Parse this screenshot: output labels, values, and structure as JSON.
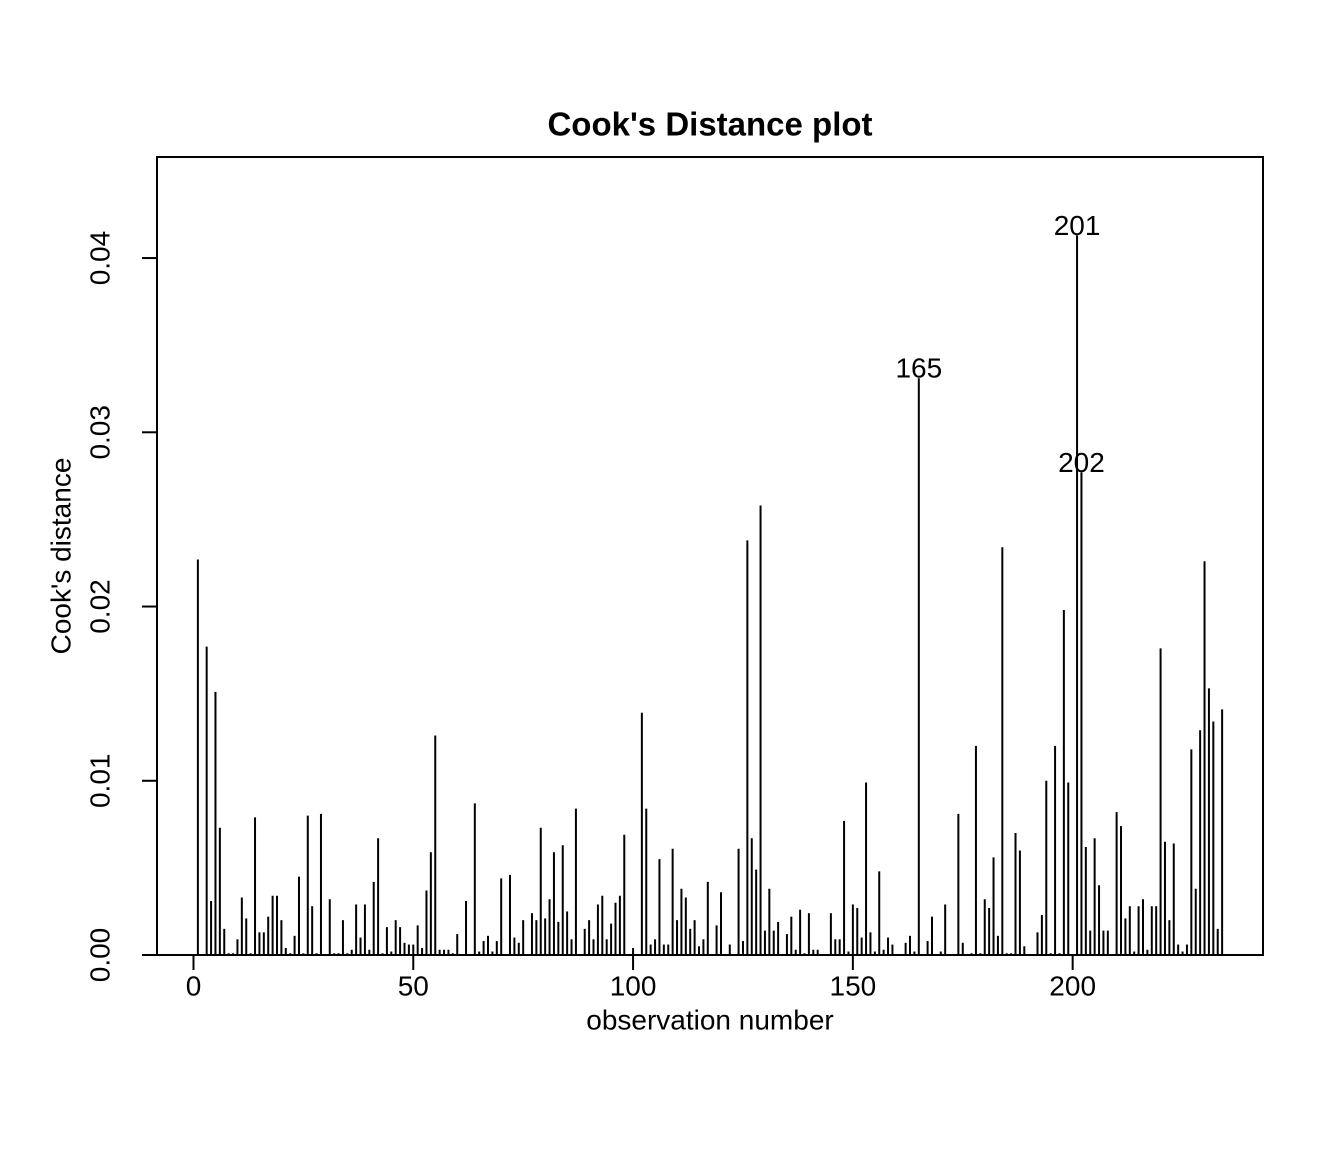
{
  "chart_data": {
    "type": "bar",
    "title": "Cook's Distance plot",
    "x_label": "observation number",
    "y_label": "Cook's distance",
    "x": [
      1,
      2,
      3,
      4,
      5,
      6,
      7,
      8,
      9,
      10,
      11,
      12,
      13,
      14,
      15,
      16,
      17,
      18,
      19,
      20,
      21,
      22,
      23,
      24,
      25,
      26,
      27,
      28,
      29,
      30,
      31,
      32,
      33,
      34,
      35,
      36,
      37,
      38,
      39,
      40,
      41,
      42,
      43,
      44,
      45,
      46,
      47,
      48,
      49,
      50,
      51,
      52,
      53,
      54,
      55,
      56,
      57,
      58,
      59,
      60,
      61,
      62,
      63,
      64,
      65,
      66,
      67,
      68,
      69,
      70,
      71,
      72,
      73,
      74,
      75,
      76,
      77,
      78,
      79,
      80,
      81,
      82,
      83,
      84,
      85,
      86,
      87,
      88,
      89,
      90,
      91,
      92,
      93,
      94,
      95,
      96,
      97,
      98,
      99,
      100,
      101,
      102,
      103,
      104,
      105,
      106,
      107,
      108,
      109,
      110,
      111,
      112,
      113,
      114,
      115,
      116,
      117,
      118,
      119,
      120,
      121,
      122,
      123,
      124,
      125,
      126,
      127,
      128,
      129,
      130,
      131,
      132,
      133,
      134,
      135,
      136,
      137,
      138,
      139,
      140,
      141,
      142,
      143,
      144,
      145,
      146,
      147,
      148,
      149,
      150,
      151,
      152,
      153,
      154,
      155,
      156,
      157,
      158,
      159,
      160,
      161,
      162,
      163,
      164,
      165,
      166,
      167,
      168,
      169,
      170,
      171,
      172,
      173,
      174,
      175,
      176,
      177,
      178,
      179,
      180,
      181,
      182,
      183,
      184,
      185,
      186,
      187,
      188,
      189,
      190,
      191,
      192,
      193,
      194,
      195,
      196,
      197,
      198,
      199,
      200,
      201,
      202,
      203,
      204,
      205,
      206,
      207,
      208,
      209,
      210,
      211,
      212,
      213,
      214,
      215,
      216,
      217,
      218,
      219,
      220,
      221,
      222,
      223,
      224,
      225,
      226,
      227,
      228,
      229,
      230,
      231,
      232,
      233,
      234
    ],
    "values": [
      0.0227,
      0,
      0.0177,
      0.0031,
      0.0151,
      0.0073,
      0.0015,
      0.0001,
      0.0001,
      0.0009,
      0.0033,
      0.0021,
      0.0001,
      0.0079,
      0.0013,
      0.0013,
      0.0022,
      0.0034,
      0.0034,
      0.002,
      0.0004,
      0.0001,
      0.0011,
      0.0045,
      0.0001,
      0.008,
      0.0028,
      0.0001,
      0.0081,
      0,
      0.0032,
      0.0001,
      0.0001,
      0.002,
      0.0001,
      0.0003,
      0.0029,
      0.001,
      0.0029,
      0.0003,
      0.0042,
      0.0067,
      0.0001,
      0.0016,
      0.0002,
      0.002,
      0.0016,
      0.0007,
      0.0006,
      0.0006,
      0.0017,
      0.0004,
      0.0037,
      0.0059,
      0.0126,
      0.0003,
      0.0003,
      0.0003,
      0.0001,
      0.0012,
      0,
      0.0031,
      0,
      0.0087,
      0.0002,
      0.0008,
      0.0011,
      0.0002,
      0.0008,
      0.0044,
      0,
      0.0046,
      0.001,
      0.0007,
      0.002,
      0,
      0.0024,
      0.002,
      0.0073,
      0.0021,
      0.0032,
      0.0059,
      0.0019,
      0.0063,
      0.0025,
      0.0009,
      0.0084,
      0,
      0.0015,
      0.002,
      0.0009,
      0.0029,
      0.0034,
      0.0009,
      0.0018,
      0.003,
      0.0034,
      0.0069,
      0,
      0.0004,
      0,
      0.0139,
      0.0084,
      0.0006,
      0.0009,
      0.0055,
      0.0006,
      0.0006,
      0.0061,
      0.002,
      0.0038,
      0.0033,
      0.0015,
      0.002,
      0.0005,
      0.0009,
      0.0042,
      0,
      0.0017,
      0.0036,
      0,
      0.0006,
      0,
      0.0061,
      0.0008,
      0.0238,
      0.0067,
      0.0049,
      0.0258,
      0.0014,
      0.0038,
      0.0014,
      0.0019,
      0,
      0.0012,
      0.0022,
      0.0003,
      0.0026,
      0.0001,
      0.0024,
      0.0003,
      0.0003,
      0,
      0,
      0.0024,
      0.0009,
      0.0009,
      0.0077,
      0.0002,
      0.0029,
      0.0027,
      0.001,
      0.0099,
      0.0013,
      0.0002,
      0.0048,
      0.0003,
      0.001,
      0.0006,
      0,
      0,
      0.0007,
      0.0011,
      0.0002,
      0.0331,
      0,
      0.0008,
      0.0022,
      0,
      0.0002,
      0.0029,
      0,
      0,
      0.0081,
      0.0007,
      0,
      0.0001,
      0.012,
      0.0001,
      0.0032,
      0.0027,
      0.0056,
      0.0011,
      0.0234,
      0.0001,
      0.0001,
      0.007,
      0.006,
      0.0005,
      0,
      0,
      0.0013,
      0.0023,
      0.01,
      0.0001,
      0.012,
      0.0001,
      0.0198,
      0.0099,
      0,
      0.0413,
      0.0277,
      0.0062,
      0.0014,
      0.0067,
      0.004,
      0.0014,
      0.0014,
      0,
      0.0082,
      0.0074,
      0.0021,
      0.0028,
      0.0002,
      0.0028,
      0.0032,
      0.0003,
      0.0028,
      0.0028,
      0.0176,
      0.0065,
      0.002,
      0.0064,
      0.0006,
      0.0002,
      0.0006,
      0.0118,
      0.0038,
      0.0129,
      0.0226,
      0.0153,
      0.0134,
      0.0015,
      0.0141
    ],
    "color": "#000000",
    "annotations": [
      {
        "label": "201",
        "x": 201
      },
      {
        "label": "165",
        "x": 165
      },
      {
        "label": "202",
        "x": 202
      }
    ],
    "xlim": [
      -8.3,
      243.3
    ],
    "xticks": [
      0,
      50,
      100,
      150,
      200
    ],
    "ylim": [
      0,
      0.0458
    ],
    "yticks": [
      {
        "value": 0,
        "label": "0.00"
      },
      {
        "value": 0.01,
        "label": "0.01"
      },
      {
        "value": 0.02,
        "label": "0.02"
      },
      {
        "value": 0.03,
        "label": "0.03"
      },
      {
        "value": 0.04,
        "label": "0.04"
      }
    ]
  }
}
